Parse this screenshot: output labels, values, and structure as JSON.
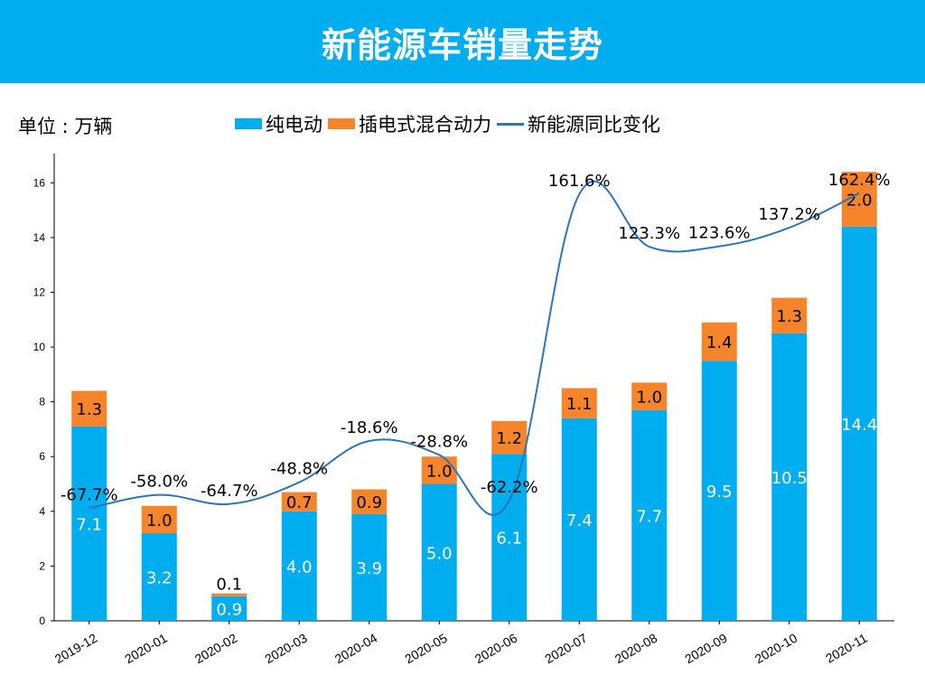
{
  "header": {
    "title": "新能源车销量走势"
  },
  "unit_label": "单位 : 万辆",
  "colors": {
    "banner": "#00aeef",
    "bev": "#00aeef",
    "phev": "#f5842b",
    "line": "#2e75b6"
  },
  "chart_data": {
    "type": "bar",
    "title": "新能源车销量走势",
    "ylabel": "单位 : 万辆",
    "xlabel": "",
    "ylim": [
      0,
      17
    ],
    "yticks": [
      0,
      2,
      4,
      6,
      8,
      10,
      12,
      14,
      16
    ],
    "categories": [
      "2019-12",
      "2020-01",
      "2020-02",
      "2020-03",
      "2020-04",
      "2020-05",
      "2020-06",
      "2020-07",
      "2020-08",
      "2020-09",
      "2020-10",
      "2020-11"
    ],
    "series": [
      {
        "name": "纯电动",
        "type": "bar",
        "stack": "total",
        "values": [
          7.1,
          3.2,
          0.9,
          4.0,
          3.9,
          5.0,
          6.1,
          7.4,
          7.7,
          9.5,
          10.5,
          14.4
        ],
        "labels": [
          "7.1",
          "3.2",
          "0.9",
          "4.0",
          "3.9",
          "5.0",
          "6.1",
          "7.4",
          "7.7",
          "9.5",
          "10.5",
          "14.4"
        ]
      },
      {
        "name": "插电式混合动力",
        "type": "bar",
        "stack": "total",
        "values": [
          1.3,
          1.0,
          0.1,
          0.7,
          0.9,
          1.0,
          1.2,
          1.1,
          1.0,
          1.4,
          1.3,
          2.0
        ],
        "labels": [
          "1.3",
          "1.0",
          "0.1",
          "0.7",
          "0.9",
          "1.0",
          "1.2",
          "1.1",
          "1.0",
          "1.4",
          "1.3",
          "2.0"
        ]
      },
      {
        "name": "新能源同比变化",
        "type": "line",
        "values": [
          -67.7,
          -58.0,
          -64.7,
          -48.8,
          -18.6,
          -28.8,
          -62.2,
          161.6,
          123.3,
          123.6,
          137.2,
          162.4
        ],
        "labels": [
          "-67.7%",
          "-58.0%",
          "-64.7%",
          "-48.8%",
          "-18.6%",
          "-28.8%",
          "-62.2%",
          "161.6%",
          "123.3%",
          "123.6%",
          "137.2%",
          "162.4%"
        ]
      }
    ],
    "line_axis_range": [
      -150,
      190
    ],
    "legend": "top",
    "grid": false
  }
}
